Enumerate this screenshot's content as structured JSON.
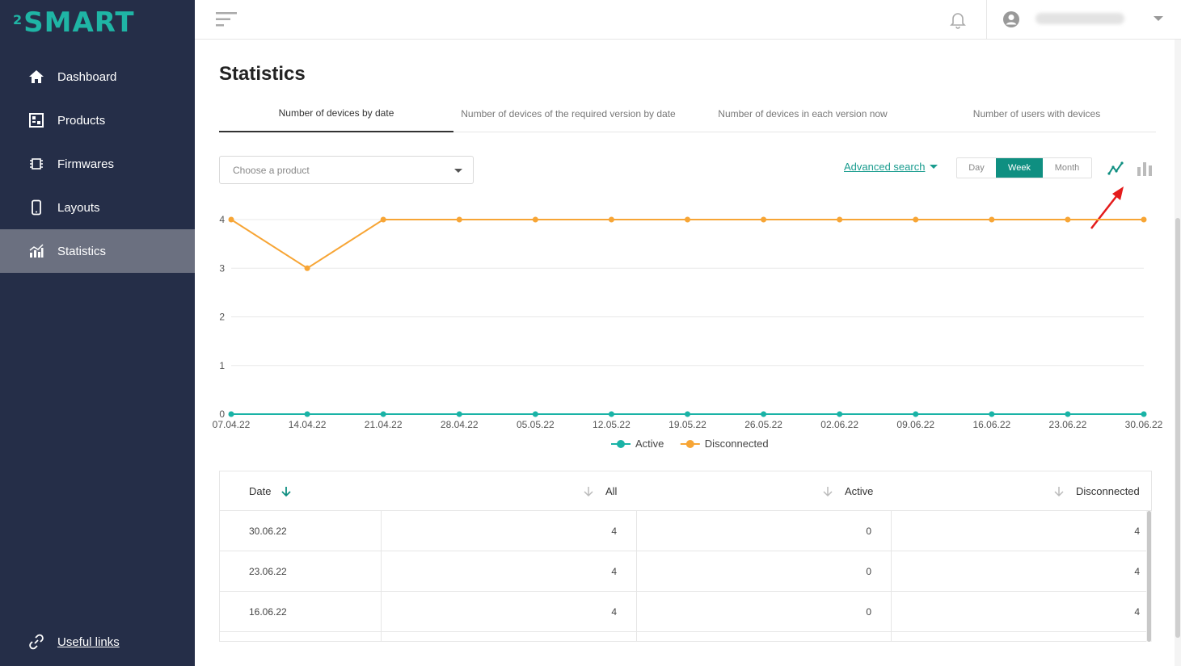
{
  "sidebar": {
    "logo": {
      "sup": "2",
      "text": "SMART"
    },
    "items": [
      {
        "label": "Dashboard",
        "icon": "home-icon"
      },
      {
        "label": "Products",
        "icon": "products-icon"
      },
      {
        "label": "Firmwares",
        "icon": "chip-icon"
      },
      {
        "label": "Layouts",
        "icon": "phone-icon"
      },
      {
        "label": "Statistics",
        "icon": "statistics-icon",
        "active": true
      }
    ],
    "useful_links": "Useful links"
  },
  "topbar": {
    "menu_icon": "menu-icon",
    "notifications_icon": "bell-icon",
    "user_icon": "user-icon"
  },
  "page": {
    "title": "Statistics",
    "tabs": [
      {
        "label": "Number of devices by date",
        "active": true
      },
      {
        "label": "Number of devices of the required version by date"
      },
      {
        "label": "Number of devices in each version now"
      },
      {
        "label": "Number of users with devices"
      }
    ],
    "product_select": {
      "placeholder": "Choose a product"
    },
    "advanced_search": "Advanced search",
    "periods": [
      {
        "label": "Day"
      },
      {
        "label": "Week",
        "active": true
      },
      {
        "label": "Month"
      }
    ],
    "colors": {
      "accent": "#0f8f81",
      "active_series": "#1ab3a6",
      "disconnected_series": "#f7a535",
      "sidebar_bg": "#252e48"
    }
  },
  "chart_data": {
    "type": "line",
    "x": [
      "07.04.22",
      "14.04.22",
      "21.04.22",
      "28.04.22",
      "05.05.22",
      "12.05.22",
      "19.05.22",
      "26.05.22",
      "02.06.22",
      "09.06.22",
      "16.06.22",
      "23.06.22",
      "30.06.22"
    ],
    "ylim": [
      0,
      4
    ],
    "yticks": [
      "0",
      "1",
      "2",
      "3",
      "4"
    ],
    "grid": true,
    "legend": "bottom",
    "series": [
      {
        "name": "Active",
        "color": "#1ab3a6",
        "values": [
          0,
          0,
          0,
          0,
          0,
          0,
          0,
          0,
          0,
          0,
          0,
          0,
          0
        ]
      },
      {
        "name": "Disconnected",
        "color": "#f7a535",
        "values": [
          4,
          3,
          4,
          4,
          4,
          4,
          4,
          4,
          4,
          4,
          4,
          4,
          4
        ]
      }
    ]
  },
  "table": {
    "headers": {
      "date": "Date",
      "all": "All",
      "active": "Active",
      "disconnected": "Disconnected"
    },
    "rows": [
      {
        "date": "30.06.22",
        "all": "4",
        "active": "0",
        "disconnected": "4"
      },
      {
        "date": "23.06.22",
        "all": "4",
        "active": "0",
        "disconnected": "4"
      },
      {
        "date": "16.06.22",
        "all": "4",
        "active": "0",
        "disconnected": "4"
      }
    ]
  }
}
